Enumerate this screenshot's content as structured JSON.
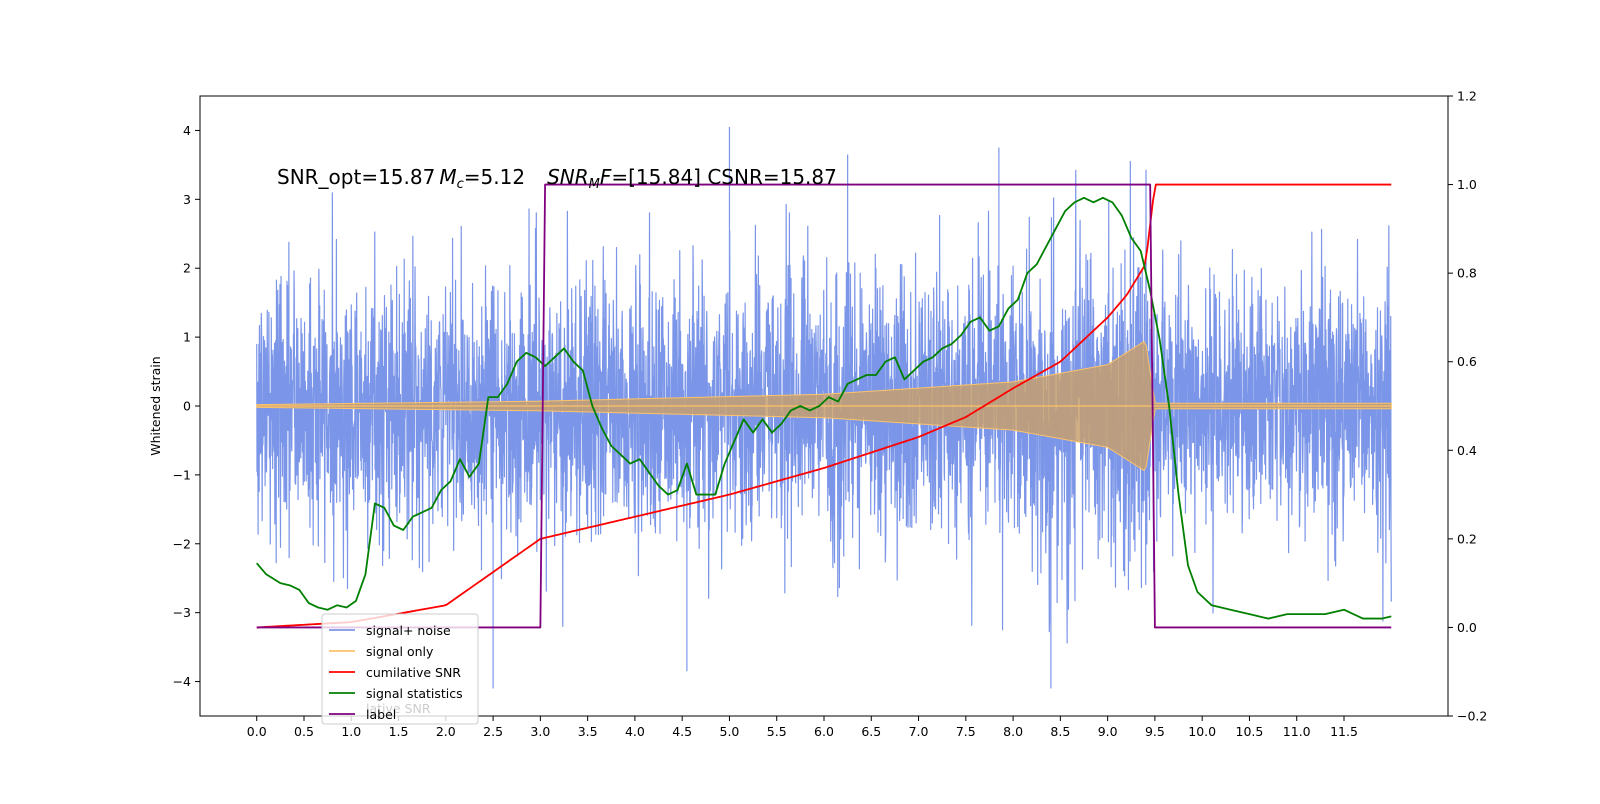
{
  "chart_data": {
    "type": "line",
    "ylabel": "Whitened strain",
    "annotation": {
      "snr_opt": "SNR_opt=15.87",
      "mc_symbol": "M",
      "mc_sub": "c",
      "mc_value": "=5.12",
      "snrmf_symbol": "SNR",
      "snrmf_sub": "M",
      "snrmf_f": "F",
      "snrmf_value": "=[15.84] CSNR=15.87"
    },
    "x_ticks": [
      "0.0",
      "0.5",
      "1.0",
      "1.5",
      "2.0",
      "2.5",
      "3.0",
      "3.5",
      "4.0",
      "4.5",
      "5.0",
      "5.5",
      "6.0",
      "6.5",
      "7.0",
      "7.5",
      "8.0",
      "8.5",
      "9.0",
      "9.5",
      "10.0",
      "10.5",
      "11.0",
      "11.5"
    ],
    "xlim": [
      -0.6,
      12.6
    ],
    "y_left_ticks": [
      "4",
      "3",
      "2",
      "1",
      "0",
      "−1",
      "−2",
      "−3",
      "−4"
    ],
    "ylim_left": [
      -4.5,
      4.5
    ],
    "y_right_ticks": [
      "1.2",
      "1.0",
      "0.8",
      "0.6",
      "0.4",
      "0.2",
      "0.0",
      "−0.2"
    ],
    "ylim_right": [
      -0.2,
      1.2
    ],
    "legend": {
      "position": "lower-left",
      "entries": [
        {
          "label": "signal+ noise",
          "color": "#7b96e8"
        },
        {
          "label": "signal only",
          "color": "#fcc36a"
        },
        {
          "label": "cumilative SNR",
          "color": "#ff0000"
        },
        {
          "label": "signal statistics",
          "color": "#008000"
        },
        {
          "label": "label",
          "color": "#800080"
        }
      ],
      "ghost_text": "lative SNR"
    },
    "series": [
      {
        "name": "signal+ noise",
        "axis": "left",
        "color": "#7b96e8",
        "x_range": [
          0.0,
          12.0
        ],
        "noise_std": 1.0,
        "approx_range": [
          -4.1,
          4.05
        ],
        "notable_spikes": [
          {
            "x": 5.0,
            "y": 4.05
          },
          {
            "x": 7.85,
            "y": 3.75
          },
          {
            "x": 6.25,
            "y": 3.65
          },
          {
            "x": 2.5,
            "y": -4.1
          },
          {
            "x": 8.4,
            "y": -4.1
          },
          {
            "x": 4.55,
            "y": -3.85
          }
        ]
      },
      {
        "name": "signal only",
        "axis": "left",
        "color": "#fcc36a",
        "x_range": [
          0.0,
          12.0
        ],
        "chirp_start": 0.0,
        "chirp_merger": 9.5,
        "amplitude_envelope": [
          [
            0.0,
            0.02
          ],
          [
            3.0,
            0.07
          ],
          [
            6.0,
            0.17
          ],
          [
            8.0,
            0.35
          ],
          [
            9.0,
            0.6
          ],
          [
            9.4,
            0.95
          ],
          [
            9.5,
            0.05
          ]
        ]
      },
      {
        "name": "cumilative SNR",
        "axis": "right",
        "color": "#ff0000",
        "x": [
          0.0,
          1.0,
          2.0,
          3.0,
          4.0,
          5.0,
          6.0,
          7.0,
          7.5,
          8.0,
          8.5,
          9.0,
          9.2,
          9.4,
          9.5,
          12.0
        ],
        "y": [
          0.0,
          0.012,
          0.05,
          0.2,
          0.25,
          0.3,
          0.36,
          0.43,
          0.475,
          0.54,
          0.6,
          0.7,
          0.75,
          0.82,
          1.0,
          1.0
        ]
      },
      {
        "name": "signal statistics",
        "axis": "right",
        "color": "#008000",
        "x": [
          0.0,
          0.1,
          0.25,
          0.35,
          0.45,
          0.55,
          0.65,
          0.75,
          0.85,
          0.95,
          1.05,
          1.15,
          1.25,
          1.35,
          1.45,
          1.55,
          1.65,
          1.75,
          1.85,
          1.95,
          2.05,
          2.15,
          2.25,
          2.35,
          2.45,
          2.55,
          2.65,
          2.75,
          2.85,
          2.95,
          3.05,
          3.15,
          3.25,
          3.35,
          3.45,
          3.55,
          3.65,
          3.75,
          3.85,
          3.95,
          4.05,
          4.15,
          4.25,
          4.35,
          4.45,
          4.55,
          4.65,
          4.75,
          4.85,
          4.95,
          5.05,
          5.15,
          5.25,
          5.35,
          5.45,
          5.55,
          5.65,
          5.75,
          5.85,
          5.95,
          6.05,
          6.15,
          6.25,
          6.35,
          6.45,
          6.55,
          6.65,
          6.75,
          6.85,
          6.95,
          7.05,
          7.15,
          7.25,
          7.35,
          7.45,
          7.55,
          7.65,
          7.75,
          7.85,
          7.95,
          8.05,
          8.15,
          8.25,
          8.35,
          8.45,
          8.55,
          8.65,
          8.75,
          8.85,
          8.95,
          9.05,
          9.15,
          9.25,
          9.35,
          9.45,
          9.55,
          9.65,
          9.75,
          9.85,
          9.95,
          10.1,
          10.3,
          10.5,
          10.7,
          10.9,
          11.1,
          11.3,
          11.5,
          11.7,
          11.9,
          12.0
        ],
        "y": [
          0.145,
          0.12,
          0.1,
          0.095,
          0.085,
          0.055,
          0.045,
          0.04,
          0.05,
          0.045,
          0.06,
          0.12,
          0.28,
          0.27,
          0.23,
          0.22,
          0.25,
          0.26,
          0.27,
          0.31,
          0.33,
          0.38,
          0.34,
          0.37,
          0.52,
          0.52,
          0.55,
          0.6,
          0.62,
          0.61,
          0.59,
          0.61,
          0.63,
          0.6,
          0.58,
          0.5,
          0.45,
          0.41,
          0.39,
          0.37,
          0.38,
          0.35,
          0.32,
          0.3,
          0.31,
          0.37,
          0.3,
          0.3,
          0.3,
          0.37,
          0.42,
          0.47,
          0.44,
          0.47,
          0.44,
          0.46,
          0.49,
          0.5,
          0.49,
          0.5,
          0.52,
          0.51,
          0.55,
          0.56,
          0.57,
          0.57,
          0.6,
          0.61,
          0.56,
          0.58,
          0.6,
          0.61,
          0.63,
          0.64,
          0.66,
          0.69,
          0.7,
          0.67,
          0.68,
          0.72,
          0.74,
          0.8,
          0.82,
          0.86,
          0.9,
          0.94,
          0.96,
          0.97,
          0.96,
          0.97,
          0.96,
          0.93,
          0.88,
          0.85,
          0.76,
          0.65,
          0.5,
          0.3,
          0.14,
          0.08,
          0.05,
          0.04,
          0.03,
          0.02,
          0.03,
          0.03,
          0.03,
          0.04,
          0.02,
          0.02,
          0.025
        ]
      },
      {
        "name": "label",
        "axis": "right",
        "color": "#800080",
        "x": [
          0.0,
          3.0,
          3.05,
          9.45,
          9.5,
          12.0
        ],
        "y": [
          0.0,
          0.0,
          1.0,
          1.0,
          0.0,
          0.0
        ]
      }
    ]
  }
}
